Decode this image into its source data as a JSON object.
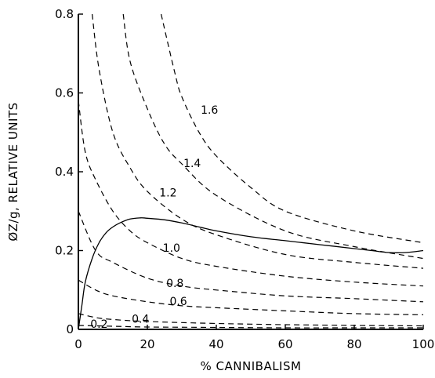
{
  "chart_data": {
    "type": "line",
    "xlabel": "% CANNIBALISM",
    "ylabel": "ØZ/g, RELATIVE UNITS",
    "xlim": [
      0,
      100
    ],
    "ylim": [
      0,
      0.8
    ],
    "x_ticks": [
      0,
      20,
      40,
      60,
      80,
      100
    ],
    "x_tick_labels": [
      "0",
      "20",
      "40",
      "60",
      "80",
      "100"
    ],
    "y_ticks": [
      0,
      0.2,
      0.4,
      0.6,
      0.8
    ],
    "y_tick_labels": [
      "0",
      "0.2",
      "0.4",
      "0.6",
      "0.8"
    ],
    "dashed_contours": [
      {
        "name": "0.2",
        "x": [
          0,
          10,
          20,
          40,
          60,
          80,
          100
        ],
        "y": [
          0.01,
          0.008,
          0.006,
          0.005,
          0.004,
          0.004,
          0.004
        ]
      },
      {
        "name": "0.4",
        "x": [
          0,
          5,
          10,
          20,
          40,
          60,
          80,
          100
        ],
        "y": [
          0.04,
          0.03,
          0.025,
          0.02,
          0.015,
          0.012,
          0.01,
          0.009
        ]
      },
      {
        "name": "0.6",
        "x": [
          0,
          5,
          10,
          20,
          30,
          40,
          60,
          80,
          100
        ],
        "y": [
          0.125,
          0.1,
          0.085,
          0.07,
          0.06,
          0.055,
          0.047,
          0.04,
          0.037
        ]
      },
      {
        "name": "0.8",
        "x": [
          0,
          5,
          10,
          20,
          30,
          40,
          60,
          80,
          100
        ],
        "y": [
          0.3,
          0.2,
          0.17,
          0.13,
          0.11,
          0.1,
          0.085,
          0.078,
          0.07
        ]
      },
      {
        "name": "1.0",
        "x": [
          0,
          2,
          5,
          10,
          15,
          20,
          30,
          40,
          60,
          80,
          100
        ],
        "y": [
          0.58,
          0.45,
          0.38,
          0.3,
          0.25,
          0.22,
          0.18,
          0.16,
          0.135,
          0.12,
          0.11
        ]
      },
      {
        "name": "1.2",
        "x": [
          4,
          6,
          10,
          15,
          20,
          30,
          40,
          60,
          80,
          100
        ],
        "y": [
          0.8,
          0.66,
          0.5,
          0.41,
          0.35,
          0.28,
          0.24,
          0.19,
          0.17,
          0.155
        ]
      },
      {
        "name": "1.4",
        "x": [
          13,
          15,
          20,
          25,
          30,
          40,
          60,
          80,
          100
        ],
        "y": [
          0.8,
          0.68,
          0.56,
          0.47,
          0.42,
          0.34,
          0.25,
          0.21,
          0.18
        ]
      },
      {
        "name": "1.6",
        "x": [
          24,
          28,
          30,
          35,
          40,
          50,
          60,
          80,
          100
        ],
        "y": [
          0.8,
          0.65,
          0.59,
          0.5,
          0.44,
          0.36,
          0.3,
          0.25,
          0.22
        ]
      }
    ],
    "solid_curve": {
      "x": [
        0,
        1,
        2,
        4,
        6,
        8,
        10,
        12,
        15,
        18,
        20,
        25,
        30,
        35,
        40,
        50,
        60,
        70,
        80,
        85,
        90,
        95,
        100
      ],
      "y": [
        0,
        0.06,
        0.12,
        0.18,
        0.22,
        0.245,
        0.26,
        0.27,
        0.28,
        0.283,
        0.282,
        0.278,
        0.27,
        0.26,
        0.25,
        0.235,
        0.225,
        0.215,
        0.205,
        0.2,
        0.195,
        0.195,
        0.2
      ]
    },
    "contour_labels": [
      {
        "text": "0.2",
        "x": 6,
        "y": 0.012
      },
      {
        "text": "0.4",
        "x": 18,
        "y": 0.025
      },
      {
        "text": "0.6",
        "x": 29,
        "y": 0.07
      },
      {
        "text": "0.8",
        "x": 28,
        "y": 0.115
      },
      {
        "text": "1.0",
        "x": 27,
        "y": 0.205
      },
      {
        "text": "1.2",
        "x": 26,
        "y": 0.345
      },
      {
        "text": "1.4",
        "x": 33,
        "y": 0.42
      },
      {
        "text": "1.6",
        "x": 38,
        "y": 0.555
      }
    ]
  }
}
